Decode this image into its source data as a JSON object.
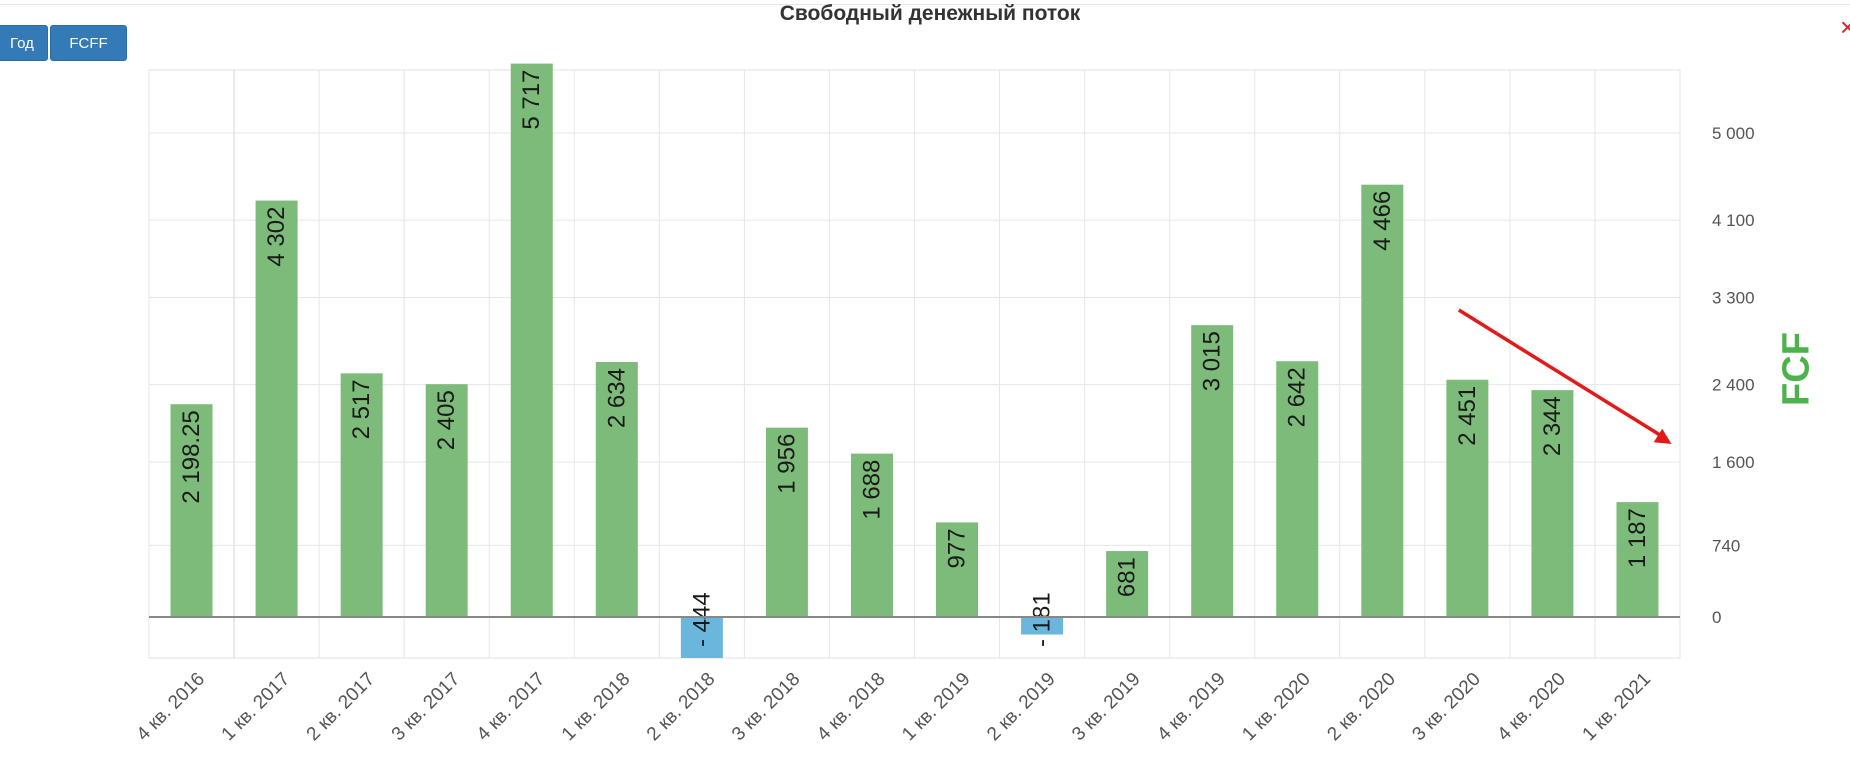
{
  "toolbar": {
    "period_label": "Год",
    "type_label": "FCFF"
  },
  "chart_data": {
    "type": "bar",
    "title": "Свободный денежный поток",
    "ylabel": "FCF",
    "xlabel": "",
    "categories": [
      "4 кв. 2016",
      "1 кв. 2017",
      "2 кв. 2017",
      "3 кв. 2017",
      "4 кв. 2017",
      "1 кв. 2018",
      "2 кв. 2018",
      "3 кв. 2018",
      "4 кв. 2018",
      "1 кв. 2019",
      "2 кв. 2019",
      "3 кв. 2019",
      "4 кв. 2019",
      "1 кв. 2020",
      "2 кв. 2020",
      "3 кв. 2020",
      "4 кв. 2020",
      "1 кв. 2021"
    ],
    "values": [
      2198.25,
      4302,
      2517,
      2405,
      5717,
      2634,
      -444,
      1956,
      1688,
      977,
      -181,
      681,
      3015,
      2642,
      4466,
      2451,
      2344,
      1187
    ],
    "value_labels": [
      "2 198.25",
      "4 302",
      "2 517",
      "2 405",
      "5 717",
      "2 634",
      "- 444",
      "1 956",
      "1 688",
      "977",
      "- 181",
      "681",
      "3 015",
      "2 642",
      "4 466",
      "2 451",
      "2 344",
      "1 187"
    ],
    "y_ticks": [
      0,
      740,
      1600,
      2400,
      3300,
      4100,
      5000
    ],
    "y_tick_labels": [
      "0",
      "740",
      "1 600",
      "2 400",
      "3 300",
      "4 100",
      "5 000"
    ],
    "ylim": [
      -444,
      5717
    ],
    "axis_position": "right",
    "grid": true,
    "colors": {
      "positive": "#7cbb79",
      "negative": "#6bb6dc",
      "grid": "#e6e6e6",
      "zero_line": "#888888",
      "trend_arrow": "#e41a1a",
      "axis_title": "#4cb24c"
    },
    "annotation": {
      "type": "arrow",
      "from_category": "3 кв. 2020",
      "to_category": "1 кв. 2021",
      "direction": "down"
    }
  }
}
